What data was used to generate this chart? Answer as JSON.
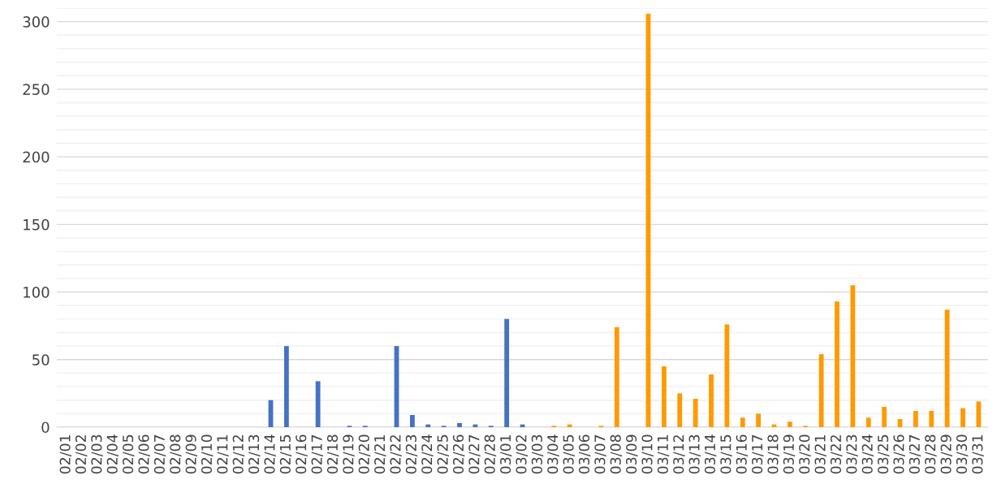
{
  "chart_data": {
    "type": "bar",
    "categories": [
      "02/01",
      "02/02",
      "02/03",
      "02/04",
      "02/05",
      "02/06",
      "02/07",
      "02/08",
      "02/09",
      "02/10",
      "02/11",
      "02/12",
      "02/13",
      "02/14",
      "02/15",
      "02/16",
      "02/17",
      "02/18",
      "02/19",
      "02/20",
      "02/21",
      "02/22",
      "02/23",
      "02/24",
      "02/25",
      "02/26",
      "02/27",
      "02/28",
      "03/01",
      "03/02",
      "03/03",
      "03/04",
      "03/05",
      "03/06",
      "03/07",
      "03/08",
      "03/09",
      "03/10",
      "03/11",
      "03/12",
      "03/13",
      "03/14",
      "03/15",
      "03/16",
      "03/17",
      "03/18",
      "03/19",
      "03/20",
      "03/21",
      "03/22",
      "03/23",
      "03/24",
      "03/25",
      "03/26",
      "03/27",
      "03/28",
      "03/29",
      "03/30",
      "03/31"
    ],
    "series": [
      {
        "color": "#4472c4",
        "values": [
          0,
          0,
          0,
          0,
          0,
          0,
          0,
          0,
          0,
          0,
          0,
          0,
          0,
          20,
          60,
          0,
          34,
          0,
          1,
          1,
          0,
          60,
          9,
          2,
          1,
          3,
          2,
          1,
          80,
          2,
          0,
          null,
          null,
          null,
          null,
          null,
          null,
          null,
          null,
          null,
          null,
          null,
          null,
          null,
          null,
          null,
          null,
          null,
          null,
          null,
          null,
          null,
          null,
          null,
          null,
          null,
          null,
          null,
          null
        ]
      },
      {
        "color": "#ff9a00",
        "values": [
          null,
          null,
          null,
          null,
          null,
          null,
          null,
          null,
          null,
          null,
          null,
          null,
          null,
          null,
          null,
          null,
          null,
          null,
          null,
          null,
          null,
          null,
          null,
          null,
          null,
          null,
          null,
          null,
          null,
          null,
          null,
          1,
          2,
          0,
          1,
          74,
          0,
          306,
          45,
          25,
          21,
          39,
          76,
          7,
          10,
          2,
          4,
          1,
          54,
          93,
          105,
          7,
          15,
          6,
          12,
          12,
          87,
          14,
          19
        ]
      }
    ],
    "ylim": [
      0,
      310
    ],
    "yticks": [
      0,
      {
        "value": 10,
        "label": null
      },
      {
        "value": 20,
        "label": null
      },
      {
        "value": 30,
        "label": null
      },
      {
        "value": 40,
        "label": null
      },
      50,
      {
        "value": 60,
        "label": null
      },
      {
        "value": 70,
        "label": null
      },
      {
        "value": 80,
        "label": null
      },
      {
        "value": 90,
        "label": null
      },
      100,
      {
        "value": 110,
        "label": null
      },
      {
        "value": 120,
        "label": null
      },
      {
        "value": 130,
        "label": null
      },
      {
        "value": 140,
        "label": null
      },
      150,
      {
        "value": 160,
        "label": null
      },
      {
        "value": 170,
        "label": null
      },
      {
        "value": 180,
        "label": null
      },
      {
        "value": 190,
        "label": null
      },
      200,
      {
        "value": 210,
        "label": null
      },
      {
        "value": 220,
        "label": null
      },
      {
        "value": 230,
        "label": null
      },
      {
        "value": 240,
        "label": null
      },
      250,
      {
        "value": 260,
        "label": null
      },
      {
        "value": 270,
        "label": null
      },
      {
        "value": 280,
        "label": null
      },
      {
        "value": 290,
        "label": null
      },
      300,
      {
        "value": 310,
        "label": null
      }
    ],
    "grid": "y"
  }
}
